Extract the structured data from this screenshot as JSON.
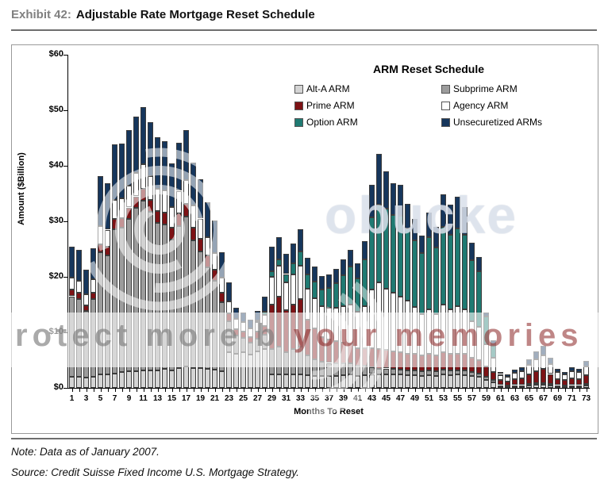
{
  "exhibit": {
    "label": "Exhibit 42:",
    "title": "Adjustable Rate Mortgage Reset Schedule"
  },
  "chart": {
    "title": "ARM Reset Schedule",
    "ylabel": "Amount ($Billion)",
    "xlabel": "Months To Reset",
    "y_ticks": [
      "$0",
      "$10",
      "$20",
      "$30",
      "$40",
      "$50",
      "$60"
    ]
  },
  "legend": [
    {
      "label": "Alt-A ARM",
      "color": "#d4d4d4"
    },
    {
      "label": "Subprime ARM",
      "color": "#9c9c9c"
    },
    {
      "label": "Prime ARM",
      "color": "#7d1215"
    },
    {
      "label": "Agency ARM",
      "color": "#ffffff"
    },
    {
      "label": "Option ARM",
      "color": "#1f7a72"
    },
    {
      "label": "Unsecuretized ARMs",
      "color": "#16365c"
    }
  ],
  "legend_display_order": [
    0,
    1,
    2,
    3,
    4,
    5
  ],
  "notes": {
    "note": "Note: Data as of January 2007.",
    "source": "Source: Credit Suisse Fixed Income U.S. Mortgage Strategy."
  },
  "watermark": {
    "band_text_left": "rotect more b",
    "band_text_right": " your memories",
    "logo_text": "obucke"
  },
  "chart_data": {
    "type": "bar",
    "stacked": true,
    "title": "ARM Reset Schedule",
    "xlabel": "Months To Reset",
    "ylabel": "Amount ($Billion)",
    "ylim": [
      0,
      60
    ],
    "x_label_step": "odd months only",
    "grid": false,
    "x": [
      1,
      2,
      3,
      4,
      5,
      6,
      7,
      8,
      9,
      10,
      11,
      12,
      13,
      14,
      15,
      16,
      17,
      18,
      19,
      20,
      21,
      22,
      23,
      24,
      25,
      26,
      27,
      28,
      29,
      30,
      31,
      32,
      33,
      34,
      35,
      36,
      37,
      38,
      39,
      40,
      41,
      42,
      43,
      44,
      45,
      46,
      47,
      48,
      49,
      50,
      51,
      52,
      53,
      54,
      55,
      56,
      57,
      58,
      59,
      60,
      61,
      62,
      63,
      64,
      65,
      66,
      67,
      68,
      69,
      70,
      71,
      72,
      73
    ],
    "series": [
      {
        "name": "Alt-A ARM",
        "color": "#d4d4d4",
        "values": [
          2,
          2,
          1.8,
          2,
          2.4,
          2.4,
          2.6,
          2.8,
          3,
          3,
          3.2,
          3.2,
          3.2,
          3.4,
          3.2,
          3.6,
          3.8,
          3.6,
          3.6,
          3.4,
          3.3,
          3,
          6.5,
          6.2,
          6.4,
          6,
          6.6,
          7,
          2.5,
          2.5,
          2.5,
          2.5,
          2.5,
          2.3,
          2.2,
          2.2,
          2.2,
          2.2,
          2.3,
          2.4,
          2.2,
          2.3,
          2.5,
          2.5,
          2.5,
          2.4,
          2.4,
          2.3,
          2.3,
          2.2,
          2.3,
          2.2,
          2.4,
          2.3,
          2.4,
          2.3,
          2.2,
          2,
          1.5,
          1,
          0.4,
          0.3,
          0.4,
          0.4,
          0.5,
          0.6,
          0.6,
          0.5,
          0.4,
          0.3,
          0.4,
          0.4,
          0.5
        ]
      },
      {
        "name": "Subprime ARM",
        "color": "#9c9c9c",
        "values": [
          14.5,
          14,
          12,
          14,
          22,
          21.5,
          26,
          26,
          27.5,
          29.5,
          30.5,
          28.5,
          26.5,
          26,
          23.5,
          25.5,
          27,
          23,
          21,
          18.3,
          16,
          12.4,
          5.5,
          3.2,
          2.6,
          2.1,
          2.3,
          2.6,
          4.5,
          5,
          4,
          4.5,
          5,
          3.5,
          3,
          2.5,
          2.3,
          2.2,
          2.1,
          2,
          1.8,
          1.7,
          1.2,
          1,
          1,
          1,
          0.9,
          0.9,
          0.8,
          0.8,
          0.8,
          0.8,
          0.9,
          0.8,
          0.8,
          0.8,
          0.7,
          0.6,
          0.5,
          0.4,
          0.1,
          0.1,
          0.1,
          0.1,
          0.2,
          0.2,
          0.2,
          0.2,
          0.1,
          0.1,
          0.1,
          0.1,
          0.2
        ]
      },
      {
        "name": "Prime ARM",
        "color": "#7d1215",
        "values": [
          1.2,
          1.2,
          1.1,
          1.2,
          1.5,
          1.5,
          1.8,
          1.8,
          2,
          2,
          2.2,
          2.2,
          2.1,
          2.2,
          2.1,
          2.3,
          2.4,
          2.3,
          2.2,
          2.1,
          2,
          1.8,
          1.4,
          1.2,
          1.2,
          1.1,
          1.2,
          1.5,
          8,
          9,
          7.5,
          8,
          8.5,
          6.5,
          5.5,
          4.5,
          4.2,
          4,
          3.8,
          3.6,
          3.2,
          3.2,
          3.5,
          3.5,
          3.3,
          3.2,
          3.2,
          3,
          3,
          2.8,
          3,
          2.8,
          3.2,
          3,
          3,
          3,
          2.6,
          2.4,
          1.8,
          1.4,
          0.9,
          0.8,
          1.1,
          1.2,
          1.7,
          2.2,
          2.6,
          1.8,
          1.1,
          1,
          1.2,
          1.1,
          1.6
        ]
      },
      {
        "name": "Agency ARM",
        "color": "#ffffff",
        "values": [
          2.2,
          2.1,
          2,
          2.4,
          3.3,
          3.1,
          3.5,
          3.6,
          3.9,
          4.2,
          4.4,
          4.2,
          4,
          4,
          3.8,
          4.1,
          4.3,
          3.9,
          3.7,
          3.3,
          3,
          2.6,
          2.2,
          1.8,
          1.6,
          1.5,
          1.7,
          2,
          5,
          5.5,
          5,
          5.5,
          6,
          5.5,
          5.5,
          5.5,
          5.7,
          6,
          6.5,
          7,
          6.5,
          7.5,
          10.5,
          12,
          11,
          10.5,
          10,
          9.5,
          8.5,
          7.5,
          8,
          7.5,
          8.5,
          8,
          8.5,
          8,
          6.5,
          6,
          4,
          2.6,
          0.9,
          0.8,
          1.1,
          1.3,
          1.7,
          2.2,
          2.5,
          1.8,
          1.2,
          1,
          1.3,
          1.2,
          1.6
        ]
      },
      {
        "name": "Option ARM",
        "color": "#1f7a72",
        "values": [
          0,
          0,
          0,
          0,
          0,
          0,
          0,
          0,
          0,
          0,
          0,
          0,
          0,
          0,
          0,
          0,
          0,
          0,
          0,
          0,
          0,
          0,
          0,
          0,
          0,
          0,
          0.3,
          0.6,
          1,
          1.2,
          1.5,
          2,
          2.6,
          2.6,
          3,
          3,
          3.6,
          4.5,
          5.6,
          6.9,
          6,
          8.5,
          13,
          14,
          14.5,
          14,
          14.5,
          13,
          12,
          11,
          13,
          12,
          14,
          13.5,
          14,
          13.5,
          11,
          10,
          5,
          2.4,
          0.2,
          0,
          0,
          0,
          0,
          0,
          0,
          0,
          0,
          0,
          0,
          0,
          0
        ]
      },
      {
        "name": "Unsecuretized ARMs",
        "color": "#16365c",
        "values": [
          5.5,
          5.5,
          4.4,
          5.5,
          9,
          8.3,
          10,
          9.8,
          10,
          10.2,
          10.3,
          9.8,
          9.3,
          8.9,
          7.8,
          8.6,
          9,
          7.8,
          7.1,
          6.3,
          5.8,
          4.6,
          3.4,
          2,
          1.8,
          1.6,
          1.8,
          2.7,
          4.5,
          4,
          3.6,
          3.5,
          4,
          3,
          2.7,
          2.4,
          2.4,
          2.5,
          2.8,
          3,
          2.7,
          3.3,
          5.9,
          9.1,
          6.7,
          5.8,
          5.6,
          4.4,
          3.8,
          3.1,
          4.5,
          3.7,
          5.9,
          5.4,
          5.7,
          5,
          3.1,
          2.6,
          0.8,
          0.8,
          0.4,
          0.4,
          0.6,
          0.7,
          1,
          1.4,
          1.7,
          1.1,
          0.6,
          0.5,
          0.7,
          0.7,
          1
        ]
      }
    ]
  }
}
